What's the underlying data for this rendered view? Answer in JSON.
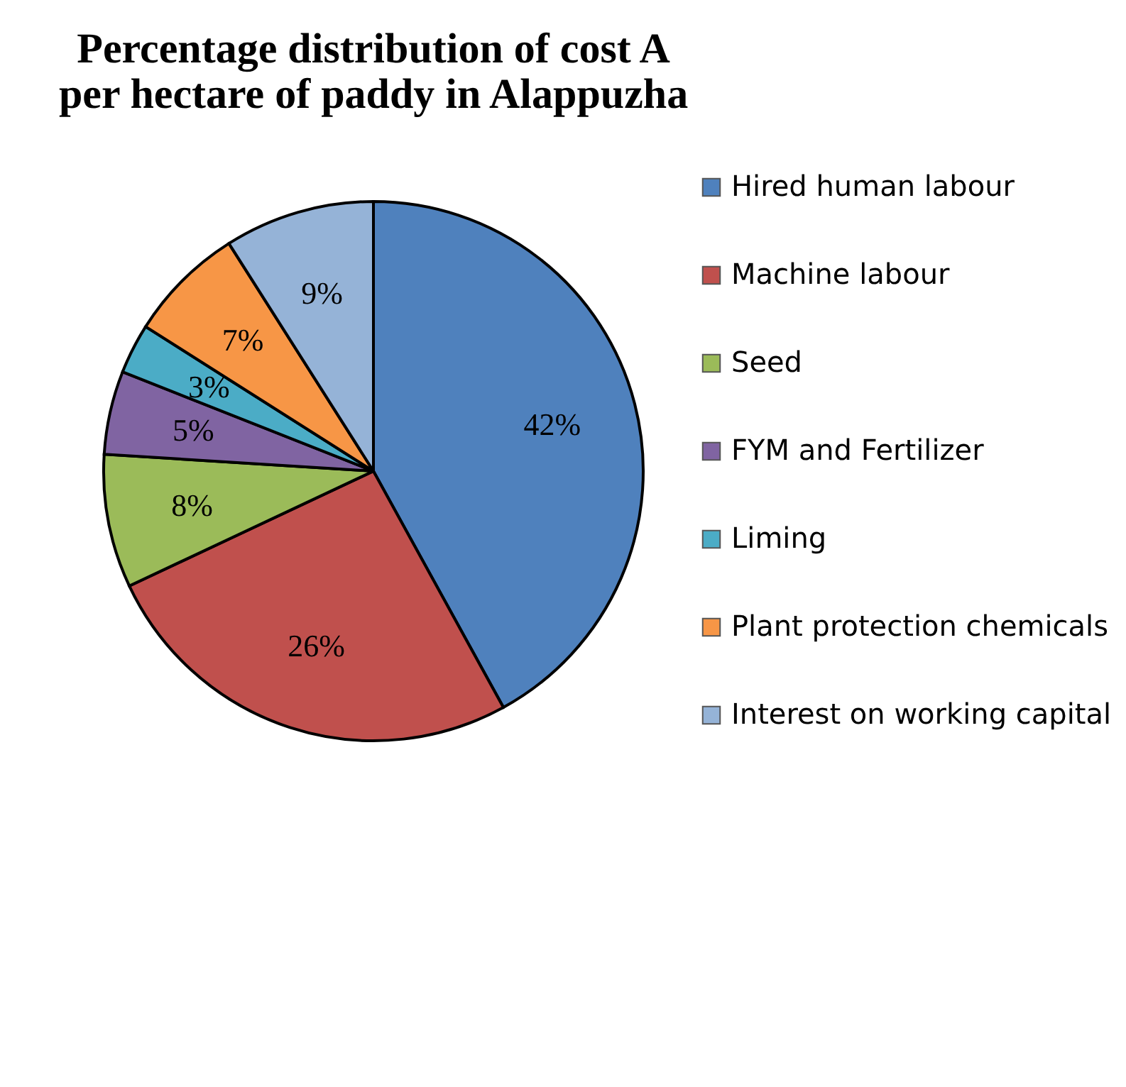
{
  "chart_data": {
    "type": "pie",
    "title": "Percentage distribution of cost A per hectare of paddy in Alappuzha",
    "categories": [
      "Hired human labour",
      "Machine labour",
      "Seed",
      "FYM and Fertilizer",
      "Liming",
      "Plant protection chemicals",
      "Interest on working capital"
    ],
    "values": [
      42,
      26,
      8,
      5,
      3,
      7,
      9
    ],
    "value_labels": [
      "42%",
      "26%",
      "8%",
      "5%",
      "3%",
      "7%",
      "9%"
    ],
    "colors": [
      "#4f81bd",
      "#c0504d",
      "#9bbb59",
      "#8064a2",
      "#4bacc6",
      "#f79646",
      "#95b3d7"
    ],
    "legend": "right"
  }
}
